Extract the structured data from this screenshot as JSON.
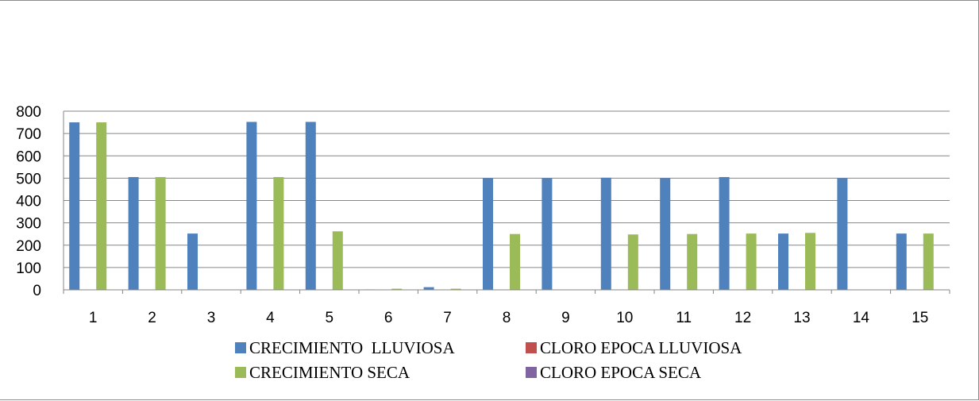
{
  "chart_data": {
    "type": "bar",
    "title": "",
    "xlabel": "",
    "ylabel": "",
    "categories": [
      "1",
      "2",
      "3",
      "4",
      "5",
      "6",
      "7",
      "8",
      "9",
      "10",
      "11",
      "12",
      "13",
      "14",
      "15"
    ],
    "ylim": [
      0,
      800
    ],
    "yticks": [
      0,
      100,
      200,
      300,
      400,
      500,
      600,
      700,
      800
    ],
    "grid": true,
    "legend_position": "bottom",
    "series": [
      {
        "name": "CRECIMIENTO  LLUVIOSA",
        "color": "#4f81bd",
        "values": [
          750,
          505,
          252,
          752,
          752,
          2,
          12,
          500,
          500,
          502,
          500,
          505,
          252,
          500,
          252
        ]
      },
      {
        "name": "CLORO EPOCA LLUVIOSA",
        "color": "#c0504d",
        "values": [
          0,
          0,
          0,
          0,
          0,
          0,
          0,
          0,
          0,
          0,
          0,
          0,
          0,
          0,
          0
        ]
      },
      {
        "name": "CRECIMIENTO SECA",
        "color": "#9bbb59",
        "values": [
          750,
          505,
          0,
          505,
          262,
          5,
          5,
          250,
          0,
          248,
          250,
          252,
          255,
          0,
          252
        ]
      },
      {
        "name": "CLORO EPOCA SECA",
        "color": "#8064a2",
        "values": [
          0,
          0,
          0,
          0,
          0,
          0,
          0,
          0,
          0,
          0,
          0,
          0,
          0,
          0,
          0
        ]
      }
    ]
  }
}
